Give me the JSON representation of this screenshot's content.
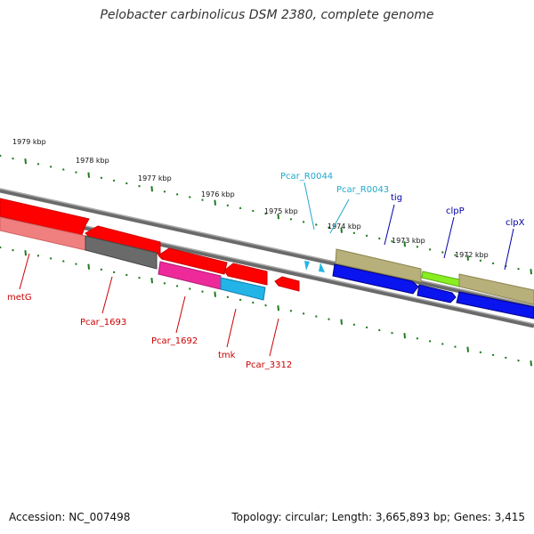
{
  "title": "Pelobacter carbinolicus DSM 2380, complete genome",
  "footer": {
    "accession": "Accession: NC_007498",
    "summary": "Topology: circular; Length: 3,665,893 bp; Genes: 3,415"
  },
  "scale": {
    "unit": "kbp",
    "labels": [
      "1979 kbp",
      "1978 kbp",
      "1977 kbp",
      "1976 kbp",
      "1975 kbp",
      "1974 kbp",
      "1973 kbp",
      "1972 kbp"
    ]
  },
  "genes": {
    "metG": "metG",
    "pcar_1693": "Pcar_1693",
    "pcar_1692": "Pcar_1692",
    "tmk": "tmk",
    "pcar_3312": "Pcar_3312",
    "pcar_r0044": "Pcar_R0044",
    "pcar_r0043": "Pcar_R0043",
    "tig": "tig",
    "clpP": "clpP",
    "clpX": "clpX"
  },
  "colors": {
    "red": "#ff0000",
    "salmon": "#f08080",
    "gray": "#6a6a6a",
    "magenta": "#ee2a9a",
    "cyan": "#22b4e6",
    "khaki": "#b8b07a",
    "blue": "#0a14ee",
    "lime": "#88ee22",
    "tick": "#1f7a1f",
    "label_red": "#cc0000",
    "label_blue": "#0000aa",
    "label_cyan": "#22aacc"
  }
}
